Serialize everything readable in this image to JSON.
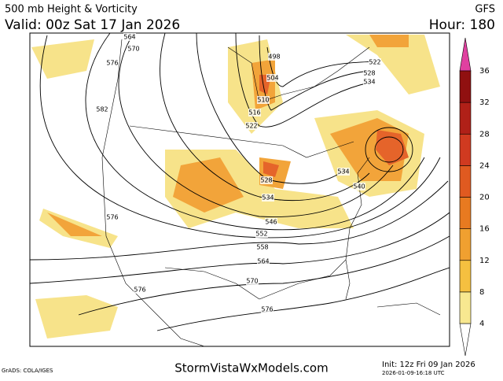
{
  "header": {
    "title": "500 mb Height & Vorticity",
    "valid": "Valid: 00z Sat 17 Jan 2026",
    "model": "GFS",
    "hour": "Hour: 180"
  },
  "contour_labels": [
    564,
    570,
    576,
    582,
    576,
    498,
    504,
    510,
    516,
    522,
    522,
    528,
    534,
    534,
    540,
    528,
    534,
    546,
    552,
    558,
    564,
    570,
    576,
    576
  ],
  "colorbar": {
    "ticks": [
      4,
      8,
      12,
      16,
      20,
      24,
      28,
      32,
      36
    ]
  },
  "footer": {
    "credit": "GrADS: COLA/IGES",
    "site": "StormVistaWxModels.com",
    "init": "Init: 12z Fri 09 Jan 2026",
    "timestamp": "2026-01-09-16:18 UTC"
  }
}
